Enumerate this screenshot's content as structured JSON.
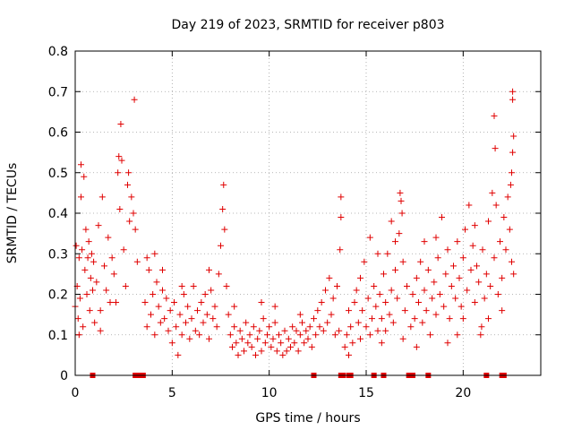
{
  "chart_data": {
    "type": "scatter",
    "title": "Day 219 of 2023, SRMTID for receiver p803",
    "xlabel": "GPS time / hours",
    "ylabel": "SRMTID / TECUs",
    "xlim": [
      0,
      24
    ],
    "ylim": [
      0,
      0.8
    ],
    "xticks": [
      0,
      5,
      10,
      15,
      20
    ],
    "xtick_labels": [
      "0",
      "5",
      "10",
      "15",
      "20"
    ],
    "yticks": [
      0,
      0.1,
      0.2,
      0.3,
      0.4,
      0.5,
      0.6,
      0.7,
      0.8
    ],
    "ytick_labels": [
      "0",
      "0.1",
      "0.2",
      "0.3",
      "0.4",
      "0.5",
      "0.6",
      "0.7",
      "0.8"
    ],
    "grid": true,
    "marker": "plus",
    "color": "#e00000",
    "series": [
      {
        "name": "SRMTID",
        "points": [
          [
            0.0,
            0.17
          ],
          [
            0.05,
            0.32
          ],
          [
            0.1,
            0.22
          ],
          [
            0.15,
            0.14
          ],
          [
            0.2,
            0.29
          ],
          [
            0.25,
            0.19
          ],
          [
            0.3,
            0.44
          ],
          [
            0.35,
            0.31
          ],
          [
            0.4,
            0.12
          ],
          [
            0.45,
            0.49
          ],
          [
            0.5,
            0.26
          ],
          [
            0.55,
            0.36
          ],
          [
            0.6,
            0.2
          ],
          [
            0.65,
            0.29
          ],
          [
            0.7,
            0.33
          ],
          [
            0.75,
            0.16
          ],
          [
            0.8,
            0.24
          ],
          [
            0.85,
            0.3
          ],
          [
            0.9,
            0.21
          ],
          [
            0.95,
            0.28
          ],
          [
            1.0,
            0.13
          ],
          [
            1.1,
            0.23
          ],
          [
            1.2,
            0.37
          ],
          [
            1.3,
            0.16
          ],
          [
            1.4,
            0.44
          ],
          [
            1.5,
            0.27
          ],
          [
            1.6,
            0.21
          ],
          [
            1.7,
            0.34
          ],
          [
            1.8,
            0.18
          ],
          [
            1.9,
            0.29
          ],
          [
            2.0,
            0.25
          ],
          [
            2.1,
            0.18
          ],
          [
            2.2,
            0.5
          ],
          [
            2.3,
            0.41
          ],
          [
            2.4,
            0.53
          ],
          [
            2.5,
            0.31
          ],
          [
            2.6,
            0.22
          ],
          [
            2.7,
            0.47
          ],
          [
            2.8,
            0.38
          ],
          [
            2.9,
            0.44
          ],
          [
            3.0,
            0.4
          ],
          [
            3.1,
            0.36
          ],
          [
            0.3,
            0.52
          ],
          [
            2.35,
            0.62
          ],
          [
            3.05,
            0.68
          ],
          [
            2.25,
            0.54
          ],
          [
            2.75,
            0.5
          ],
          [
            1.3,
            0.11
          ],
          [
            0.2,
            0.1
          ],
          [
            3.2,
            0.28
          ],
          [
            3.6,
            0.18
          ],
          [
            3.7,
            0.12
          ],
          [
            3.8,
            0.26
          ],
          [
            3.9,
            0.15
          ],
          [
            4.0,
            0.2
          ],
          [
            4.1,
            0.1
          ],
          [
            4.2,
            0.23
          ],
          [
            4.3,
            0.17
          ],
          [
            4.4,
            0.13
          ],
          [
            4.5,
            0.21
          ],
          [
            4.6,
            0.14
          ],
          [
            4.7,
            0.19
          ],
          [
            4.8,
            0.11
          ],
          [
            4.9,
            0.16
          ],
          [
            5.0,
            0.08
          ],
          [
            5.1,
            0.18
          ],
          [
            5.2,
            0.12
          ],
          [
            5.3,
            0.05
          ],
          [
            5.4,
            0.15
          ],
          [
            5.5,
            0.1
          ],
          [
            5.6,
            0.2
          ],
          [
            5.7,
            0.13
          ],
          [
            5.8,
            0.17
          ],
          [
            5.9,
            0.09
          ],
          [
            6.0,
            0.14
          ],
          [
            6.1,
            0.22
          ],
          [
            6.2,
            0.11
          ],
          [
            6.3,
            0.16
          ],
          [
            6.4,
            0.1
          ],
          [
            6.5,
            0.18
          ],
          [
            6.6,
            0.13
          ],
          [
            6.7,
            0.2
          ],
          [
            6.8,
            0.15
          ],
          [
            6.9,
            0.09
          ],
          [
            7.0,
            0.21
          ],
          [
            7.1,
            0.14
          ],
          [
            7.2,
            0.17
          ],
          [
            7.3,
            0.12
          ],
          [
            7.4,
            0.25
          ],
          [
            7.5,
            0.32
          ],
          [
            7.6,
            0.41
          ],
          [
            7.65,
            0.47
          ],
          [
            7.7,
            0.36
          ],
          [
            7.8,
            0.22
          ],
          [
            7.9,
            0.15
          ],
          [
            4.1,
            0.3
          ],
          [
            3.7,
            0.29
          ],
          [
            6.9,
            0.26
          ],
          [
            5.5,
            0.22
          ],
          [
            4.5,
            0.26
          ],
          [
            8.0,
            0.1
          ],
          [
            8.1,
            0.07
          ],
          [
            8.2,
            0.12
          ],
          [
            8.3,
            0.08
          ],
          [
            8.4,
            0.05
          ],
          [
            8.5,
            0.11
          ],
          [
            8.6,
            0.09
          ],
          [
            8.7,
            0.06
          ],
          [
            8.8,
            0.13
          ],
          [
            8.9,
            0.08
          ],
          [
            9.0,
            0.1
          ],
          [
            9.1,
            0.07
          ],
          [
            9.2,
            0.12
          ],
          [
            9.3,
            0.05
          ],
          [
            9.4,
            0.09
          ],
          [
            9.5,
            0.11
          ],
          [
            9.6,
            0.06
          ],
          [
            9.7,
            0.14
          ],
          [
            9.8,
            0.08
          ],
          [
            9.9,
            0.1
          ],
          [
            10.0,
            0.12
          ],
          [
            10.1,
            0.07
          ],
          [
            10.2,
            0.09
          ],
          [
            10.3,
            0.13
          ],
          [
            10.4,
            0.06
          ],
          [
            10.5,
            0.1
          ],
          [
            10.6,
            0.08
          ],
          [
            10.7,
            0.05
          ],
          [
            10.8,
            0.11
          ],
          [
            10.9,
            0.06
          ],
          [
            11.0,
            0.09
          ],
          [
            11.1,
            0.07
          ],
          [
            11.2,
            0.12
          ],
          [
            11.3,
            0.08
          ],
          [
            11.4,
            0.11
          ],
          [
            11.5,
            0.06
          ],
          [
            11.6,
            0.1
          ],
          [
            11.7,
            0.13
          ],
          [
            11.8,
            0.08
          ],
          [
            11.9,
            0.11
          ],
          [
            12.0,
            0.09
          ],
          [
            12.1,
            0.12
          ],
          [
            12.2,
            0.07
          ],
          [
            12.3,
            0.14
          ],
          [
            12.4,
            0.1
          ],
          [
            12.5,
            0.16
          ],
          [
            12.6,
            0.12
          ],
          [
            12.7,
            0.18
          ],
          [
            12.8,
            0.11
          ],
          [
            12.9,
            0.21
          ],
          [
            13.0,
            0.13
          ],
          [
            13.1,
            0.24
          ],
          [
            13.2,
            0.15
          ],
          [
            13.3,
            0.19
          ],
          [
            13.4,
            0.1
          ],
          [
            13.5,
            0.22
          ],
          [
            9.6,
            0.18
          ],
          [
            10.3,
            0.17
          ],
          [
            8.2,
            0.17
          ],
          [
            11.6,
            0.15
          ],
          [
            13.7,
            0.44
          ],
          [
            13.7,
            0.39
          ],
          [
            13.65,
            0.31
          ],
          [
            13.9,
            0.07
          ],
          [
            14.0,
            0.1
          ],
          [
            14.1,
            0.05
          ],
          [
            14.2,
            0.12
          ],
          [
            14.3,
            0.08
          ],
          [
            13.6,
            0.11
          ],
          [
            14.1,
            0.16
          ],
          [
            14.4,
            0.18
          ],
          [
            14.5,
            0.21
          ],
          [
            14.6,
            0.13
          ],
          [
            14.7,
            0.24
          ],
          [
            14.8,
            0.16
          ],
          [
            14.9,
            0.28
          ],
          [
            15.0,
            0.12
          ],
          [
            15.1,
            0.19
          ],
          [
            15.2,
            0.1
          ],
          [
            15.3,
            0.14
          ],
          [
            15.4,
            0.22
          ],
          [
            15.5,
            0.17
          ],
          [
            15.6,
            0.11
          ],
          [
            15.7,
            0.2
          ],
          [
            15.8,
            0.14
          ],
          [
            15.9,
            0.25
          ],
          [
            16.0,
            0.18
          ],
          [
            16.1,
            0.3
          ],
          [
            16.2,
            0.15
          ],
          [
            16.3,
            0.21
          ],
          [
            16.4,
            0.13
          ],
          [
            16.5,
            0.26
          ],
          [
            16.6,
            0.19
          ],
          [
            16.7,
            0.35
          ],
          [
            16.75,
            0.45
          ],
          [
            16.8,
            0.43
          ],
          [
            16.85,
            0.4
          ],
          [
            16.9,
            0.28
          ],
          [
            17.0,
            0.16
          ],
          [
            17.1,
            0.22
          ],
          [
            15.2,
            0.34
          ],
          [
            15.8,
            0.08
          ],
          [
            16.3,
            0.38
          ],
          [
            14.7,
            0.09
          ],
          [
            15.6,
            0.3
          ],
          [
            16.0,
            0.11
          ],
          [
            16.5,
            0.33
          ],
          [
            17.3,
            0.12
          ],
          [
            17.4,
            0.2
          ],
          [
            17.5,
            0.14
          ],
          [
            17.6,
            0.24
          ],
          [
            17.7,
            0.18
          ],
          [
            17.8,
            0.28
          ],
          [
            17.9,
            0.13
          ],
          [
            18.0,
            0.21
          ],
          [
            18.1,
            0.16
          ],
          [
            18.2,
            0.26
          ],
          [
            18.3,
            0.1
          ],
          [
            18.4,
            0.19
          ],
          [
            18.5,
            0.23
          ],
          [
            18.6,
            0.15
          ],
          [
            18.7,
            0.29
          ],
          [
            18.8,
            0.2
          ],
          [
            18.9,
            0.39
          ],
          [
            19.0,
            0.17
          ],
          [
            19.1,
            0.25
          ],
          [
            19.2,
            0.31
          ],
          [
            19.3,
            0.14
          ],
          [
            19.4,
            0.22
          ],
          [
            19.5,
            0.27
          ],
          [
            19.6,
            0.19
          ],
          [
            19.7,
            0.33
          ],
          [
            19.8,
            0.24
          ],
          [
            19.9,
            0.17
          ],
          [
            20.0,
            0.29
          ],
          [
            20.1,
            0.36
          ],
          [
            20.2,
            0.21
          ],
          [
            20.3,
            0.42
          ],
          [
            20.4,
            0.26
          ],
          [
            20.5,
            0.32
          ],
          [
            20.6,
            0.18
          ],
          [
            20.7,
            0.27
          ],
          [
            20.8,
            0.23
          ],
          [
            20.9,
            0.1
          ],
          [
            21.0,
            0.31
          ],
          [
            21.1,
            0.19
          ],
          [
            21.2,
            0.25
          ],
          [
            21.3,
            0.38
          ],
          [
            21.4,
            0.22
          ],
          [
            21.5,
            0.45
          ],
          [
            21.6,
            0.29
          ],
          [
            21.7,
            0.42
          ],
          [
            21.8,
            0.2
          ],
          [
            21.9,
            0.33
          ],
          [
            22.0,
            0.24
          ],
          [
            22.1,
            0.39
          ],
          [
            22.2,
            0.31
          ],
          [
            22.3,
            0.44
          ],
          [
            22.4,
            0.36
          ],
          [
            22.5,
            0.28
          ],
          [
            21.6,
            0.64
          ],
          [
            21.65,
            0.56
          ],
          [
            22.55,
            0.7
          ],
          [
            22.55,
            0.68
          ],
          [
            22.6,
            0.59
          ],
          [
            22.55,
            0.55
          ],
          [
            22.5,
            0.5
          ],
          [
            22.45,
            0.47
          ],
          [
            22.0,
            0.16
          ],
          [
            20.95,
            0.12
          ],
          [
            18.0,
            0.33
          ],
          [
            19.2,
            0.08
          ],
          [
            20.6,
            0.37
          ],
          [
            17.6,
            0.07
          ],
          [
            21.3,
            0.14
          ],
          [
            19.7,
            0.1
          ],
          [
            22.6,
            0.25
          ],
          [
            20.0,
            0.14
          ],
          [
            18.6,
            0.34
          ],
          [
            16.9,
            0.09
          ]
        ]
      }
    ],
    "baseline_markers_x": [
      0.9,
      3.1,
      3.2,
      3.3,
      3.4,
      3.5,
      12.3,
      13.7,
      13.8,
      14.1,
      14.2,
      15.4,
      15.9,
      17.2,
      17.3,
      17.4,
      18.2,
      21.2,
      22.0,
      22.1
    ]
  }
}
